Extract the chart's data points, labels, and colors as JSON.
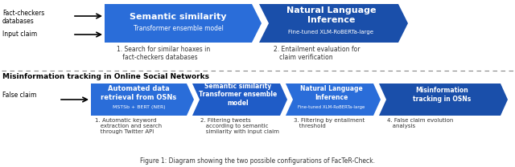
{
  "bg_color": "#ffffff",
  "fig_caption": "Figure 1: Diagram showing the two possible configurations of FacTeR-Check.",
  "section1_label1": "Fact-checkers\ndatabases",
  "section1_label2": "Input claim",
  "box1_title": "Semantic similarity",
  "box1_sub": "Transformer ensemble model",
  "box1_note": "1. Search for similar hoaxes in\n   fact-checkers databases",
  "box2_title": "Natural Language\nInference",
  "box2_sub": "Fine-tuned XLM-RoBERTa-large",
  "box2_note": "2. Entailment evaluation for\n   claim verification",
  "divider_label": "Misinformation tracking in Online Social Networks",
  "section2_label": "False claim",
  "box3_title": "Automated data\nretrieval from OSNs",
  "box3_sub": "MSTSb + BERT (NER)",
  "box3_note": "1. Automatic keyword\n   extraction and search\n   through Twitter API",
  "box4_title": "Semantic similarity\nTransformer ensemble\nmodel",
  "box4_sub": "",
  "box4_note": "2. Filtering tweets\n   according to semantic\n   similarity with input claim",
  "box5_title": "Natural Language\nInference",
  "box5_sub": "Fine-tuned XLM-RoBERTa-large",
  "box5_note": "3. Filtering by entailment\n   threshold",
  "box6_title": "Misinformation\ntracking in OSNs",
  "box6_sub": "",
  "box6_note": "4. False claim evolution\n   analysis",
  "blue_light": "#2a6dd9",
  "blue_mid": "#1f5cc7",
  "blue_dark": "#1a4faa"
}
